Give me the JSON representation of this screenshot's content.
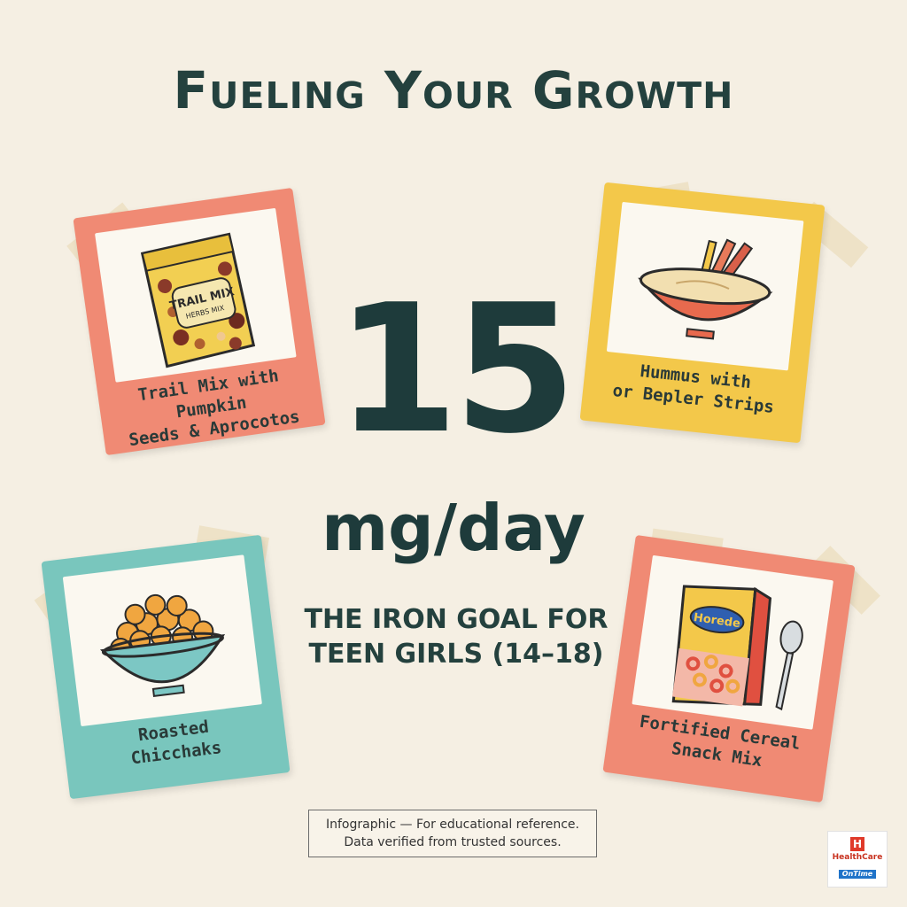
{
  "title": "Fueling Your Growth",
  "goal_value": "15",
  "goal_unit": "mg/day",
  "goal_label_line1": "THE IRON GOAL FOR",
  "goal_label_line2": "TEEN GIRLS (14–18)",
  "cards": [
    {
      "caption_line1": "Trail Mix with Pumpkin",
      "caption_line2": "Seeds & Aprocotos",
      "bag_text1": "TRAIL MIX",
      "bag_text2": "HERBS MIX",
      "color": "#f08a74",
      "icon": "trail-mix-bag"
    },
    {
      "caption_line1": "Hummus with",
      "caption_line2": "or Bepler Strips",
      "color": "#f3c84a",
      "icon": "hummus-bowl"
    },
    {
      "caption_line1": "Roasted",
      "caption_line2": "Chicchaks",
      "color": "#79c6bd",
      "icon": "chickpea-bowl"
    },
    {
      "caption_line1": "Fortified Cereal",
      "caption_line2": "Snack Mix",
      "box_text": "Horede",
      "color": "#f08a74",
      "icon": "cereal-box"
    }
  ],
  "disclaimer_line1": "Infographic — For educational reference.",
  "disclaimer_line2": "Data verified from trusted sources.",
  "logo": {
    "letter": "H",
    "brand": "HealthCare",
    "sub": "OnTime"
  }
}
